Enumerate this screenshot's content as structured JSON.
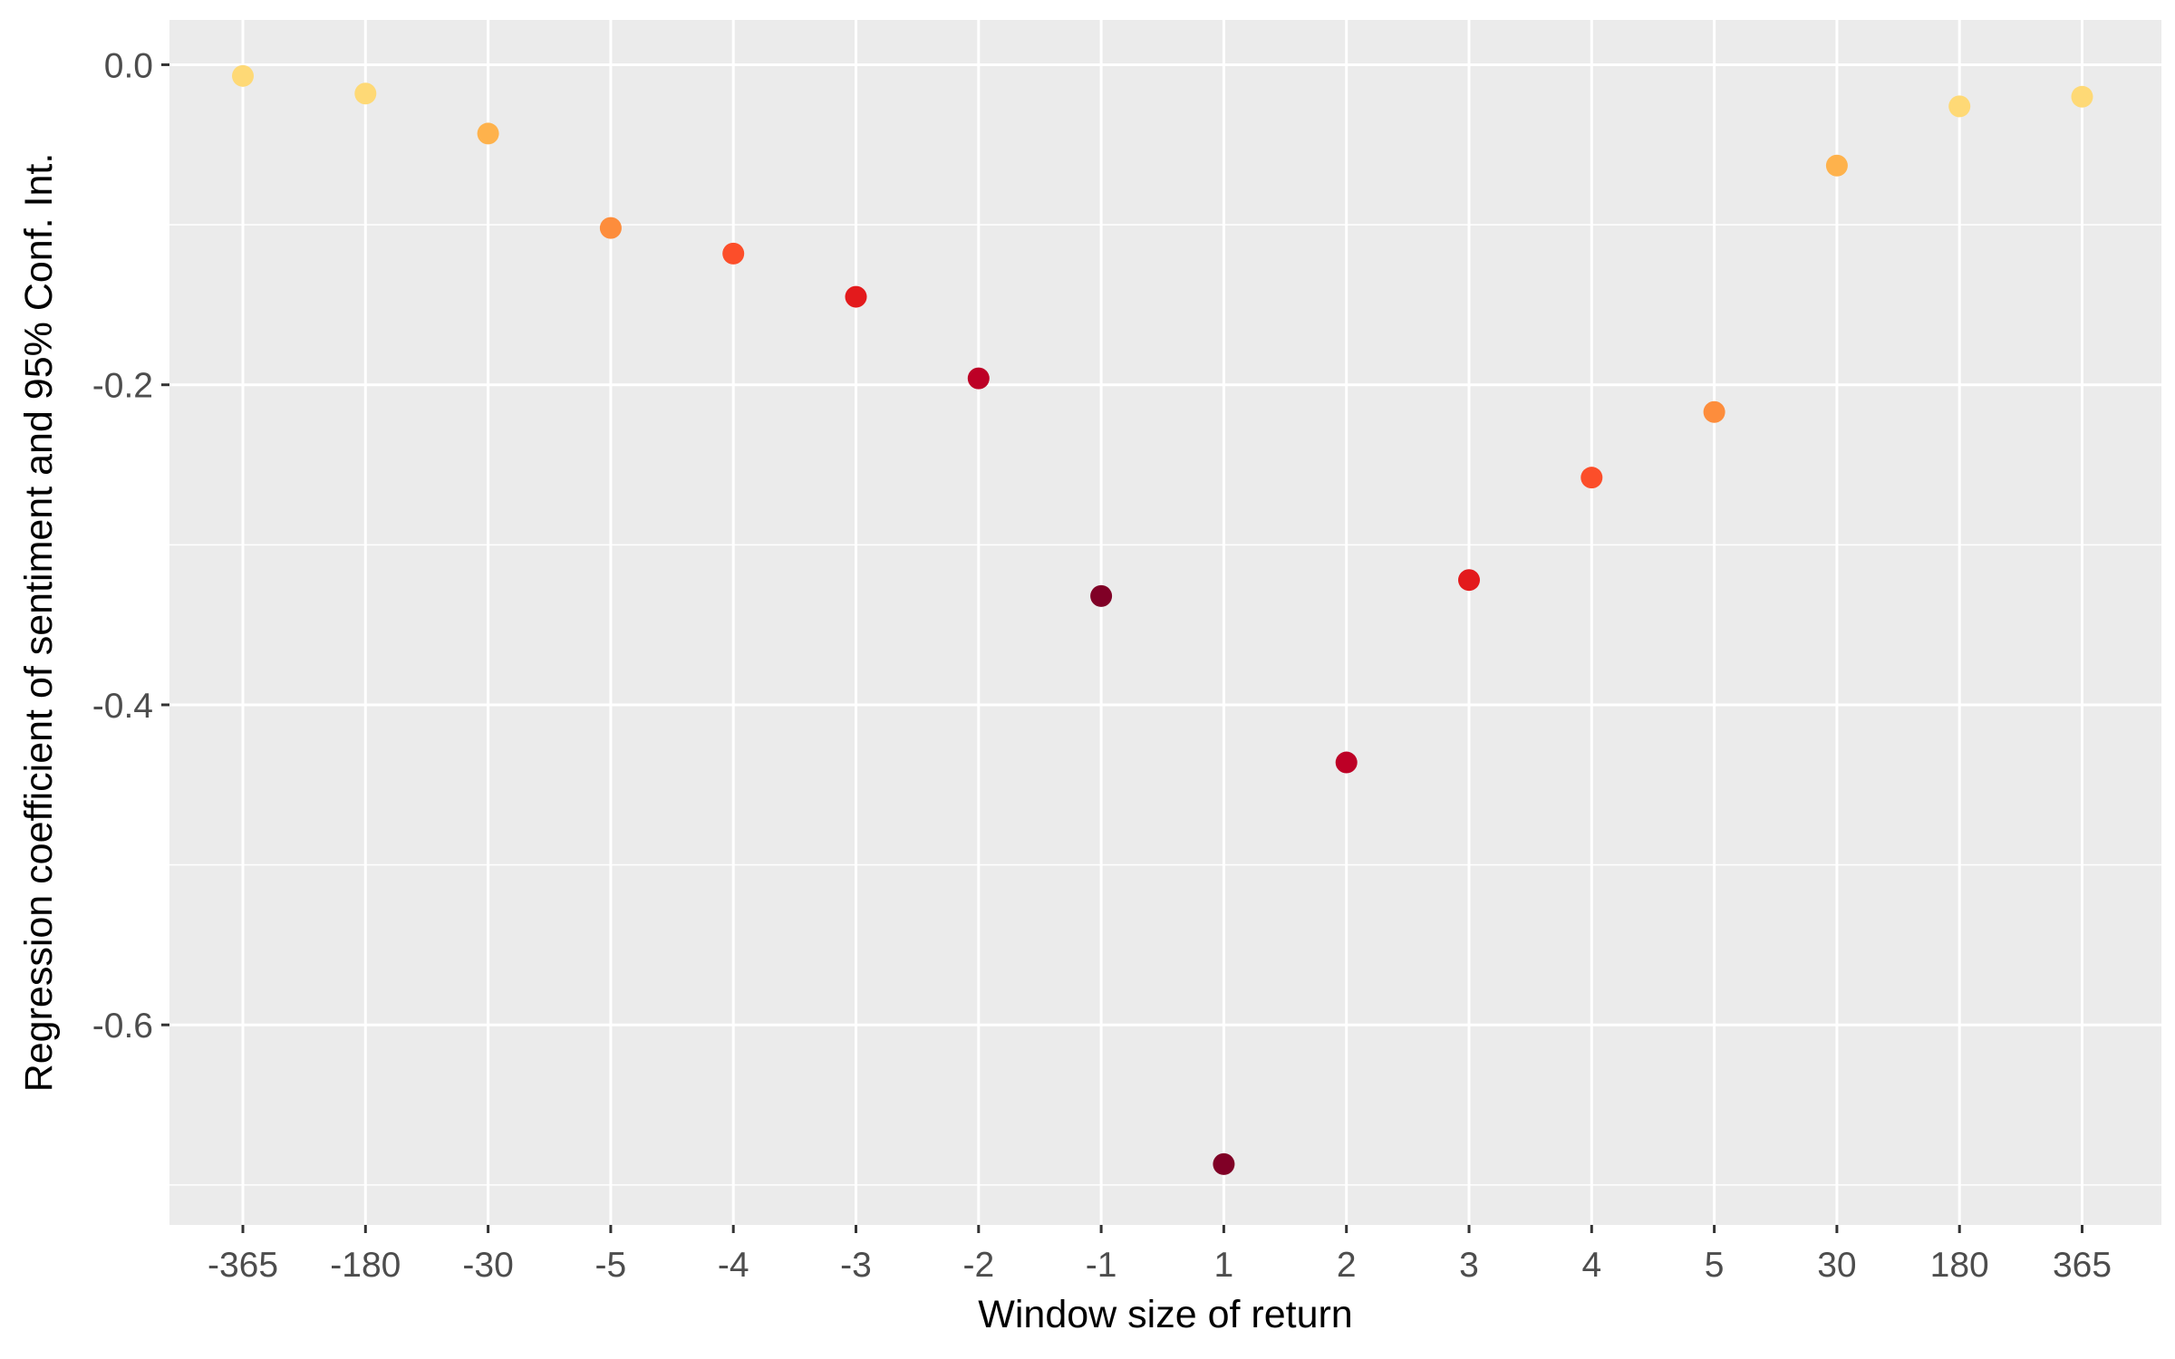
{
  "chart_data": {
    "type": "scatter",
    "title": "",
    "xlabel": "Window size of return",
    "ylabel": "Regression coefficient of sentiment and 95% Conf. Int.",
    "x_type": "categorical",
    "categories": [
      "-365",
      "-180",
      "-30",
      "-5",
      "-4",
      "-3",
      "-2",
      "-1",
      "1",
      "2",
      "3",
      "4",
      "5",
      "30",
      "180",
      "365"
    ],
    "values": [
      -0.007,
      -0.018,
      -0.043,
      -0.102,
      -0.118,
      -0.145,
      -0.196,
      -0.332,
      -0.687,
      -0.436,
      -0.322,
      -0.258,
      -0.217,
      -0.063,
      -0.026,
      -0.02
    ],
    "point_colors": [
      "#fed976",
      "#fed976",
      "#feb24c",
      "#fd8d3c",
      "#fc4e2a",
      "#e31a1c",
      "#bd0026",
      "#800026",
      "#800026",
      "#bd0026",
      "#e31a1c",
      "#fc4e2a",
      "#fd8d3c",
      "#feb24c",
      "#fed976",
      "#fed976"
    ],
    "y_ticks": [
      0.0,
      -0.2,
      -0.4,
      -0.6
    ],
    "y_tick_labels": [
      "0.0",
      "-0.2",
      "-0.4",
      "-0.6"
    ],
    "ylim": [
      -0.725,
      0.028
    ],
    "grid": true,
    "legend": "none"
  }
}
